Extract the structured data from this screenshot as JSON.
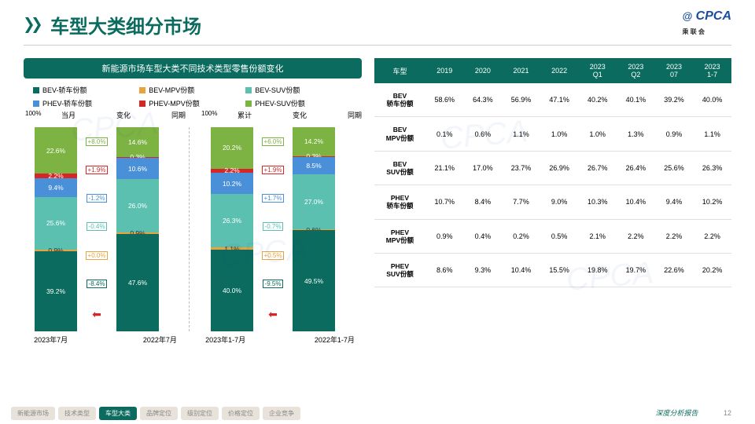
{
  "page": {
    "title": "车型大类细分市场",
    "logo_main": "CPCA",
    "logo_sub": "乘 联 会",
    "footer_text": "深度分析报告",
    "page_number": "12"
  },
  "colors": {
    "primary": "#0a6b5e",
    "bev_sedan": "#0a6b5e",
    "bev_mpv": "#e8a33d",
    "bev_suv": "#5bc0b0",
    "phev_sedan": "#4a90d9",
    "phev_mpv": "#d62728",
    "phev_suv": "#7cb342"
  },
  "chart": {
    "title": "新能源市场车型大类不同技术类型零售份额变化",
    "legend": [
      {
        "label": "BEV-轿车份额",
        "color": "#0a6b5e"
      },
      {
        "label": "BEV-MPV份额",
        "color": "#e8a33d"
      },
      {
        "label": "BEV-SUV份额",
        "color": "#5bc0b0"
      },
      {
        "label": "PHEV-轿车份额",
        "color": "#4a90d9"
      },
      {
        "label": "PHEV-MPV份额",
        "color": "#d62728"
      },
      {
        "label": "PHEV-SUV份额",
        "color": "#7cb342"
      }
    ],
    "ymax_label": "100%",
    "headers_left": [
      "当月",
      "变化",
      "同期"
    ],
    "headers_right": [
      "累计",
      "变化",
      "同期"
    ],
    "bars": [
      {
        "group": "left",
        "x": "2023年7月",
        "segments": [
          {
            "key": "bev_sedan",
            "v": 39.2,
            "label": "39.2%"
          },
          {
            "key": "bev_mpv",
            "v": 0.9,
            "label": "0.9%",
            "dark": true
          },
          {
            "key": "bev_suv",
            "v": 25.6,
            "label": "25.6%"
          },
          {
            "key": "phev_sedan",
            "v": 9.4,
            "label": "9.4%"
          },
          {
            "key": "phev_mpv",
            "v": 2.2,
            "label": "2.2%"
          },
          {
            "key": "phev_suv",
            "v": 22.6,
            "label": "22.6%"
          }
        ]
      },
      {
        "group": "left",
        "x": "2022年7月",
        "segments": [
          {
            "key": "bev_sedan",
            "v": 47.6,
            "label": "47.6%"
          },
          {
            "key": "bev_mpv",
            "v": 0.9,
            "label": "0.9%",
            "dark": true
          },
          {
            "key": "bev_suv",
            "v": 26.0,
            "label": "26.0%"
          },
          {
            "key": "phev_sedan",
            "v": 10.6,
            "label": "10.6%"
          },
          {
            "key": "phev_mpv",
            "v": 0.3,
            "label": "0.3%"
          },
          {
            "key": "phev_suv",
            "v": 14.6,
            "label": "14.6%"
          }
        ]
      },
      {
        "group": "right",
        "x": "2023年1-7月",
        "segments": [
          {
            "key": "bev_sedan",
            "v": 40.0,
            "label": "40.0%"
          },
          {
            "key": "bev_mpv",
            "v": 1.1,
            "label": "1.1%",
            "dark": true
          },
          {
            "key": "bev_suv",
            "v": 26.3,
            "label": "26.3%"
          },
          {
            "key": "phev_sedan",
            "v": 10.2,
            "label": "10.2%"
          },
          {
            "key": "phev_mpv",
            "v": 2.2,
            "label": "2.2%"
          },
          {
            "key": "phev_suv",
            "v": 20.2,
            "label": "20.2%"
          }
        ]
      },
      {
        "group": "right",
        "x": "2022年1-7月",
        "segments": [
          {
            "key": "bev_sedan",
            "v": 49.5,
            "label": "49.5%"
          },
          {
            "key": "bev_mpv",
            "v": 0.6,
            "label": "0.6%",
            "dark": true
          },
          {
            "key": "bev_suv",
            "v": 27.0,
            "label": "27.0%"
          },
          {
            "key": "phev_sedan",
            "v": 8.5,
            "label": "8.5%"
          },
          {
            "key": "phev_mpv",
            "v": 0.3,
            "label": "0.3%"
          },
          {
            "key": "phev_suv",
            "v": 14.2,
            "label": "14.2%"
          }
        ]
      }
    ],
    "changes": [
      [
        {
          "v": "+8.0%",
          "c": "#7cb342"
        },
        {
          "v": "+1.9%",
          "c": "#d62728"
        },
        {
          "v": "-1.2%",
          "c": "#4a90d9"
        },
        {
          "v": "-0.4%",
          "c": "#5bc0b0"
        },
        {
          "v": "+0.0%",
          "c": "#e8a33d"
        },
        {
          "v": "-8.4%",
          "c": "#0a6b5e"
        }
      ],
      [
        {
          "v": "+6.0%",
          "c": "#7cb342"
        },
        {
          "v": "+1.9%",
          "c": "#d62728"
        },
        {
          "v": "+1.7%",
          "c": "#4a90d9"
        },
        {
          "v": "-0.7%",
          "c": "#5bc0b0"
        },
        {
          "v": "+0.5%",
          "c": "#e8a33d"
        },
        {
          "v": "-9.5%",
          "c": "#0a6b5e"
        }
      ]
    ]
  },
  "table": {
    "columns": [
      "车型",
      "2019",
      "2020",
      "2021",
      "2022",
      "2023\nQ1",
      "2023\nQ2",
      "2023\n07",
      "2023\n1-7"
    ],
    "rows": [
      [
        "BEV\n轿车份额",
        "58.6%",
        "64.3%",
        "56.9%",
        "47.1%",
        "40.2%",
        "40.1%",
        "39.2%",
        "40.0%"
      ],
      [
        "BEV\nMPV份额",
        "0.1%",
        "0.6%",
        "1.1%",
        "1.0%",
        "1.0%",
        "1.3%",
        "0.9%",
        "1.1%"
      ],
      [
        "BEV\nSUV份额",
        "21.1%",
        "17.0%",
        "23.7%",
        "26.9%",
        "26.7%",
        "26.4%",
        "25.6%",
        "26.3%"
      ],
      [
        "PHEV\n轿车份额",
        "10.7%",
        "8.4%",
        "7.7%",
        "9.0%",
        "10.3%",
        "10.4%",
        "9.4%",
        "10.2%"
      ],
      [
        "PHEV\nMPV份额",
        "0.9%",
        "0.4%",
        "0.2%",
        "0.5%",
        "2.1%",
        "2.2%",
        "2.2%",
        "2.2%"
      ],
      [
        "PHEV\nSUV份额",
        "8.6%",
        "9.3%",
        "10.4%",
        "15.5%",
        "19.8%",
        "19.7%",
        "22.6%",
        "20.2%"
      ]
    ]
  },
  "tabs": [
    "新能源市场",
    "技术类型",
    "车型大类",
    "品牌定位",
    "级别定位",
    "价格定位",
    "企业竞争"
  ],
  "active_tab": 2
}
